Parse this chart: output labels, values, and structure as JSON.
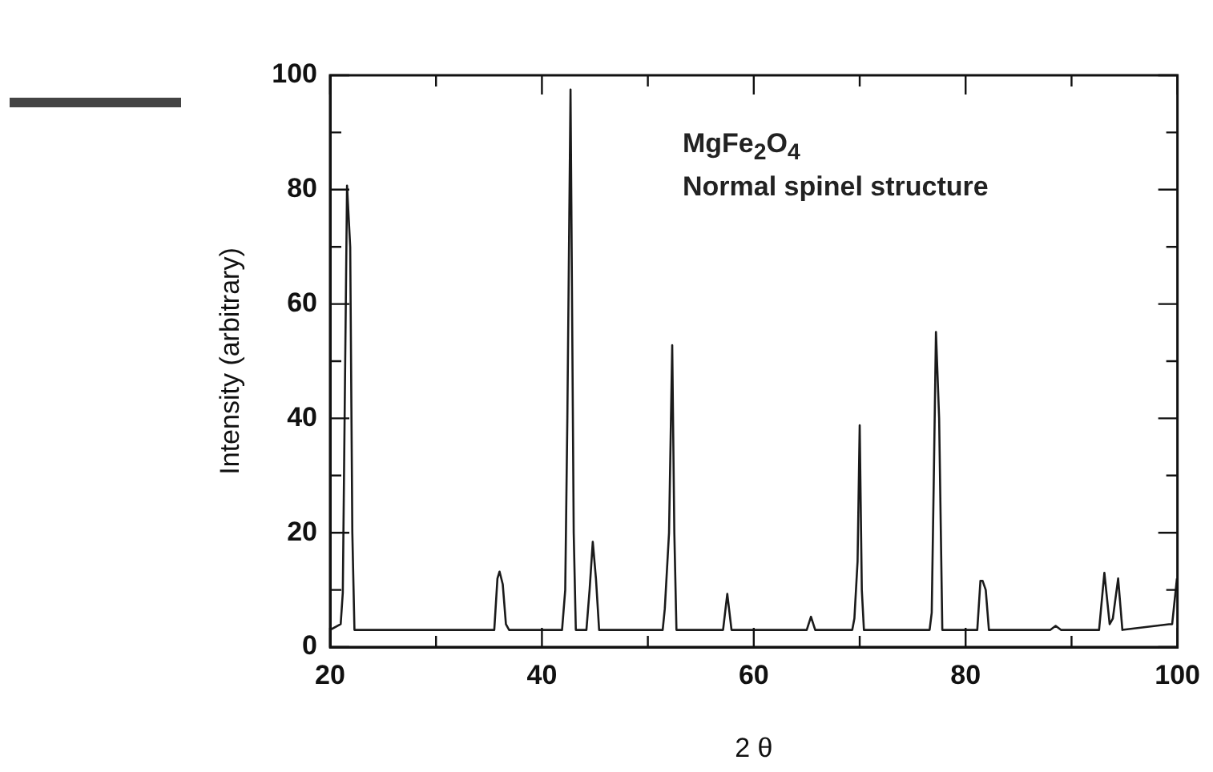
{
  "chart_data": {
    "type": "line",
    "xlabel": "2 θ",
    "ylabel": "Intensity (arbitrary)",
    "annotations": [
      "MgFe$_{2}$O$_{4}$",
      "Normal spinel structure"
    ],
    "x": [
      20,
      21.0,
      21.2,
      21.6,
      21.9,
      22.1,
      22.3,
      22.6,
      35.5,
      35.8,
      36.0,
      36.3,
      36.6,
      36.9,
      41.9,
      42.2,
      42.4,
      42.7,
      43.0,
      43.2,
      44.2,
      44.5,
      44.8,
      45.1,
      45.4,
      51.4,
      51.6,
      52.0,
      52.3,
      52.5,
      52.7,
      57.1,
      57.5,
      57.9,
      65.0,
      65.4,
      65.8,
      69.3,
      69.5,
      69.8,
      70.0,
      70.2,
      70.4,
      76.6,
      76.8,
      77.0,
      77.2,
      77.5,
      77.8,
      81.1,
      81.4,
      81.6,
      81.9,
      82.2,
      88.0,
      88.5,
      89.0,
      92.6,
      93.1,
      93.6,
      93.9,
      94.4,
      94.8,
      99.2,
      99.5,
      99.95
    ],
    "values": [
      3,
      4,
      9.5,
      80.7,
      70,
      20,
      3,
      3,
      3,
      12,
      13.2,
      11,
      4,
      3,
      3,
      10,
      40,
      97.5,
      20,
      3,
      3,
      10,
      18.4,
      12,
      3,
      3,
      6.7,
      20,
      52.8,
      20,
      3,
      3,
      9.3,
      3,
      3,
      5.3,
      3,
      3,
      5,
      15,
      38.8,
      10,
      3,
      3,
      6,
      30,
      55.1,
      40,
      3,
      3,
      11.6,
      11.6,
      10,
      3,
      3,
      3.7,
      3,
      3,
      13,
      4,
      5,
      12,
      3,
      4,
      4,
      12
    ],
    "color": "#1a1a1a",
    "marker": "none",
    "line_style": "solid",
    "legend": false,
    "grid": false,
    "xlim": [
      20,
      100
    ],
    "ylim": [
      0,
      100
    ],
    "xticks": [
      20,
      {
        "value": 30,
        "label": null
      },
      40,
      {
        "value": 50,
        "label": null
      },
      60,
      {
        "value": 70,
        "label": null
      },
      80,
      {
        "value": 90,
        "label": null
      },
      100
    ],
    "yticks": [
      0,
      {
        "value": 10,
        "label": null
      },
      20,
      {
        "value": 30,
        "label": null
      },
      40,
      {
        "value": 50,
        "label": null
      },
      60,
      {
        "value": 70,
        "label": null
      },
      80,
      {
        "value": 90,
        "label": null
      },
      100
    ]
  }
}
